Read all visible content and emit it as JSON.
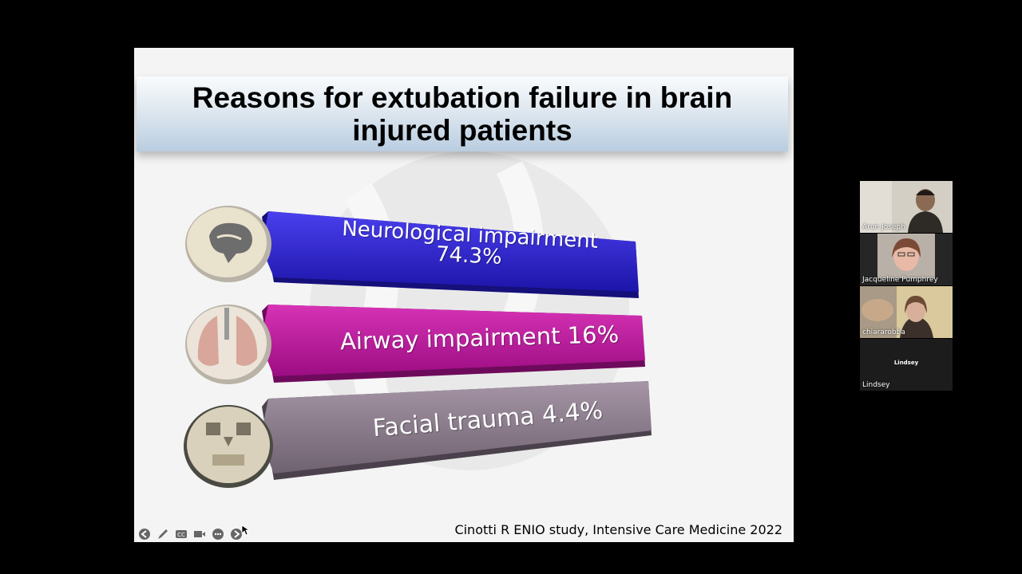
{
  "slide": {
    "title": "Reasons for extubation failure in brain injured patients",
    "bars": [
      {
        "line1": "Neurological impairment",
        "line2": "74.3%",
        "icon": "brain-icon",
        "color": "#2a1fd0"
      },
      {
        "line1": "Airway impairment 16%",
        "icon": "lungs-icon",
        "color": "#c0159f"
      },
      {
        "line1": "Facial trauma 4.4%",
        "icon": "skull-icon",
        "color": "#8a7b8c"
      }
    ],
    "citation": "Cinotti R ENIO study, Intensive Care Medicine 2022"
  },
  "controls": [
    "prev-slide-icon",
    "pen-icon",
    "captions-icon",
    "video-icon",
    "more-icon",
    "next-slide-icon"
  ],
  "participants": [
    {
      "name": "Arun Joseph"
    },
    {
      "name": "Jacqueline Pumphrey"
    },
    {
      "name": "chiararobba"
    },
    {
      "name": "Lindsey",
      "center_label": "Lindsey"
    }
  ]
}
